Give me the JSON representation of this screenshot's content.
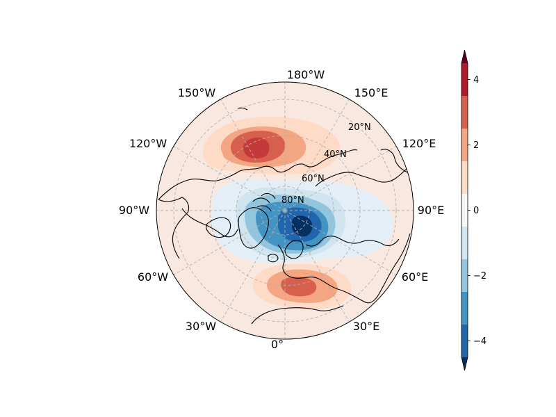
{
  "map": {
    "projection": "north-polar-stereographic",
    "longitude_labels": [
      {
        "id": "lon-180w",
        "text": "180°W",
        "lon": 180
      },
      {
        "id": "lon-150e",
        "text": "150°E",
        "lon": 150
      },
      {
        "id": "lon-120e",
        "text": "120°E",
        "lon": 120
      },
      {
        "id": "lon-90e",
        "text": "90°E",
        "lon": 90
      },
      {
        "id": "lon-60e",
        "text": "60°E",
        "lon": 60
      },
      {
        "id": "lon-30e",
        "text": "30°E",
        "lon": 30
      },
      {
        "id": "lon-0",
        "text": "0°",
        "lon": 0
      },
      {
        "id": "lon-30w",
        "text": "30°W",
        "lon": -30
      },
      {
        "id": "lon-60w",
        "text": "60°W",
        "lon": -60
      },
      {
        "id": "lon-90w",
        "text": "90°W",
        "lon": -90
      },
      {
        "id": "lon-120w",
        "text": "120°W",
        "lon": -120
      },
      {
        "id": "lon-150w",
        "text": "150°W",
        "lon": -150
      }
    ],
    "latitude_labels": [
      {
        "id": "lat-20n",
        "text": "20°N",
        "lat": 20
      },
      {
        "id": "lat-40n",
        "text": "40°N",
        "lat": 40
      },
      {
        "id": "lat-60n",
        "text": "60°N",
        "lat": 60
      },
      {
        "id": "lat-80n",
        "text": "80°N",
        "lat": 80
      }
    ],
    "gridlines": true,
    "coastlines": true
  },
  "anomaly_field": {
    "centers": [
      {
        "name": "north-pacific-positive",
        "lat": 45,
        "lon": -160,
        "value": 3.5
      },
      {
        "name": "arctic-negative",
        "lat": 78,
        "lon": 60,
        "value": -4.6
      },
      {
        "name": "mediterranean-positive",
        "lat": 42,
        "lon": 8,
        "value": 2.1
      }
    ]
  },
  "colorbar": {
    "levels": [
      -5,
      -4.5,
      -3.5,
      -2.5,
      -1.5,
      -0.5,
      0.5,
      1.5,
      2.5,
      3.5,
      4.5,
      5
    ],
    "colors": [
      "#053061",
      "#2166ac",
      "#4393c3",
      "#92c5de",
      "#d1e5f0",
      "#f7f7f7",
      "#fddbc7",
      "#f4a582",
      "#d6604d",
      "#b2182b",
      "#67001f"
    ],
    "extend": "both",
    "ticks": [
      {
        "value": -4,
        "label": "−4"
      },
      {
        "value": -2,
        "label": "−2"
      },
      {
        "value": 0,
        "label": "0"
      },
      {
        "value": 2,
        "label": "2"
      },
      {
        "value": 4,
        "label": "4"
      }
    ]
  },
  "colors": {
    "neg_strong": "#053061",
    "neg_4": "#2166ac",
    "neg_3": "#4393c3",
    "neg_2": "#92c5de",
    "neg_1": "#d1e5f0",
    "neutral": "#f7f7f7",
    "pos_1": "#fddbc7",
    "pos_2": "#f4a582",
    "pos_3": "#d6604d",
    "pos_4": "#b2182b",
    "pos_strong": "#67001f",
    "background_positive": "#f9e8df",
    "background_negative": "#e2ecf5"
  }
}
